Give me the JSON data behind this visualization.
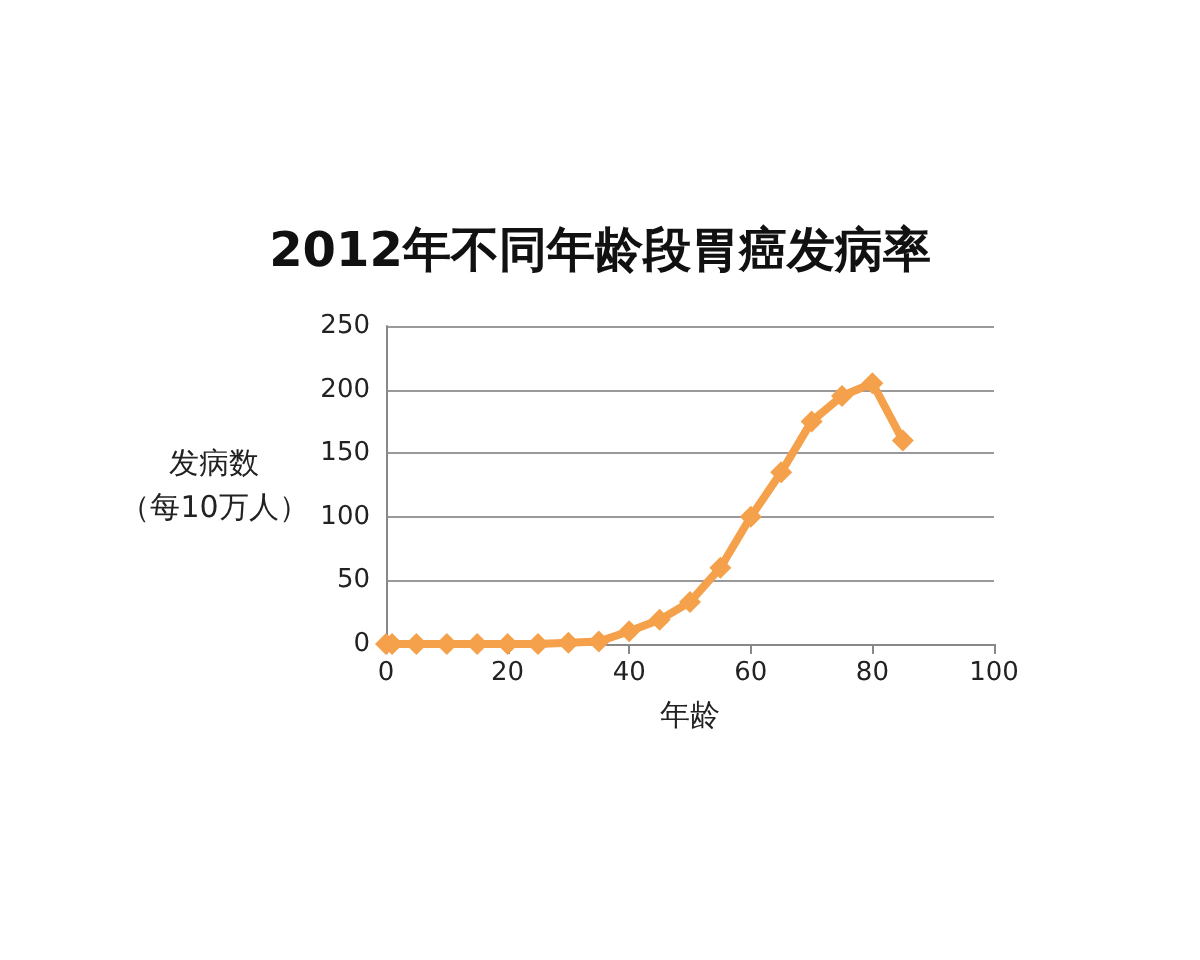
{
  "chart_data": {
    "type": "line",
    "title": "2012年不同年龄段胃癌发病率",
    "xlabel": "年龄",
    "ylabel": "发病数（每10万人）",
    "x": [
      0,
      1,
      5,
      10,
      15,
      20,
      25,
      30,
      35,
      40,
      45,
      50,
      55,
      60,
      65,
      70,
      75,
      80,
      85
    ],
    "series": [
      {
        "color": "#f5a04a",
        "values": [
          0,
          0,
          0,
          0,
          0,
          0,
          0,
          1,
          2,
          10,
          19,
          33,
          60,
          100,
          135,
          175,
          195,
          205,
          160
        ]
      }
    ],
    "xlim": [
      0,
      100
    ],
    "xticks": [
      0,
      20,
      40,
      60,
      80,
      100
    ],
    "ylim": [
      0,
      250
    ],
    "yticks": [
      0,
      50,
      100,
      150,
      200,
      250
    ],
    "grid": "y",
    "marker": "diamond",
    "line_style": "solid"
  }
}
